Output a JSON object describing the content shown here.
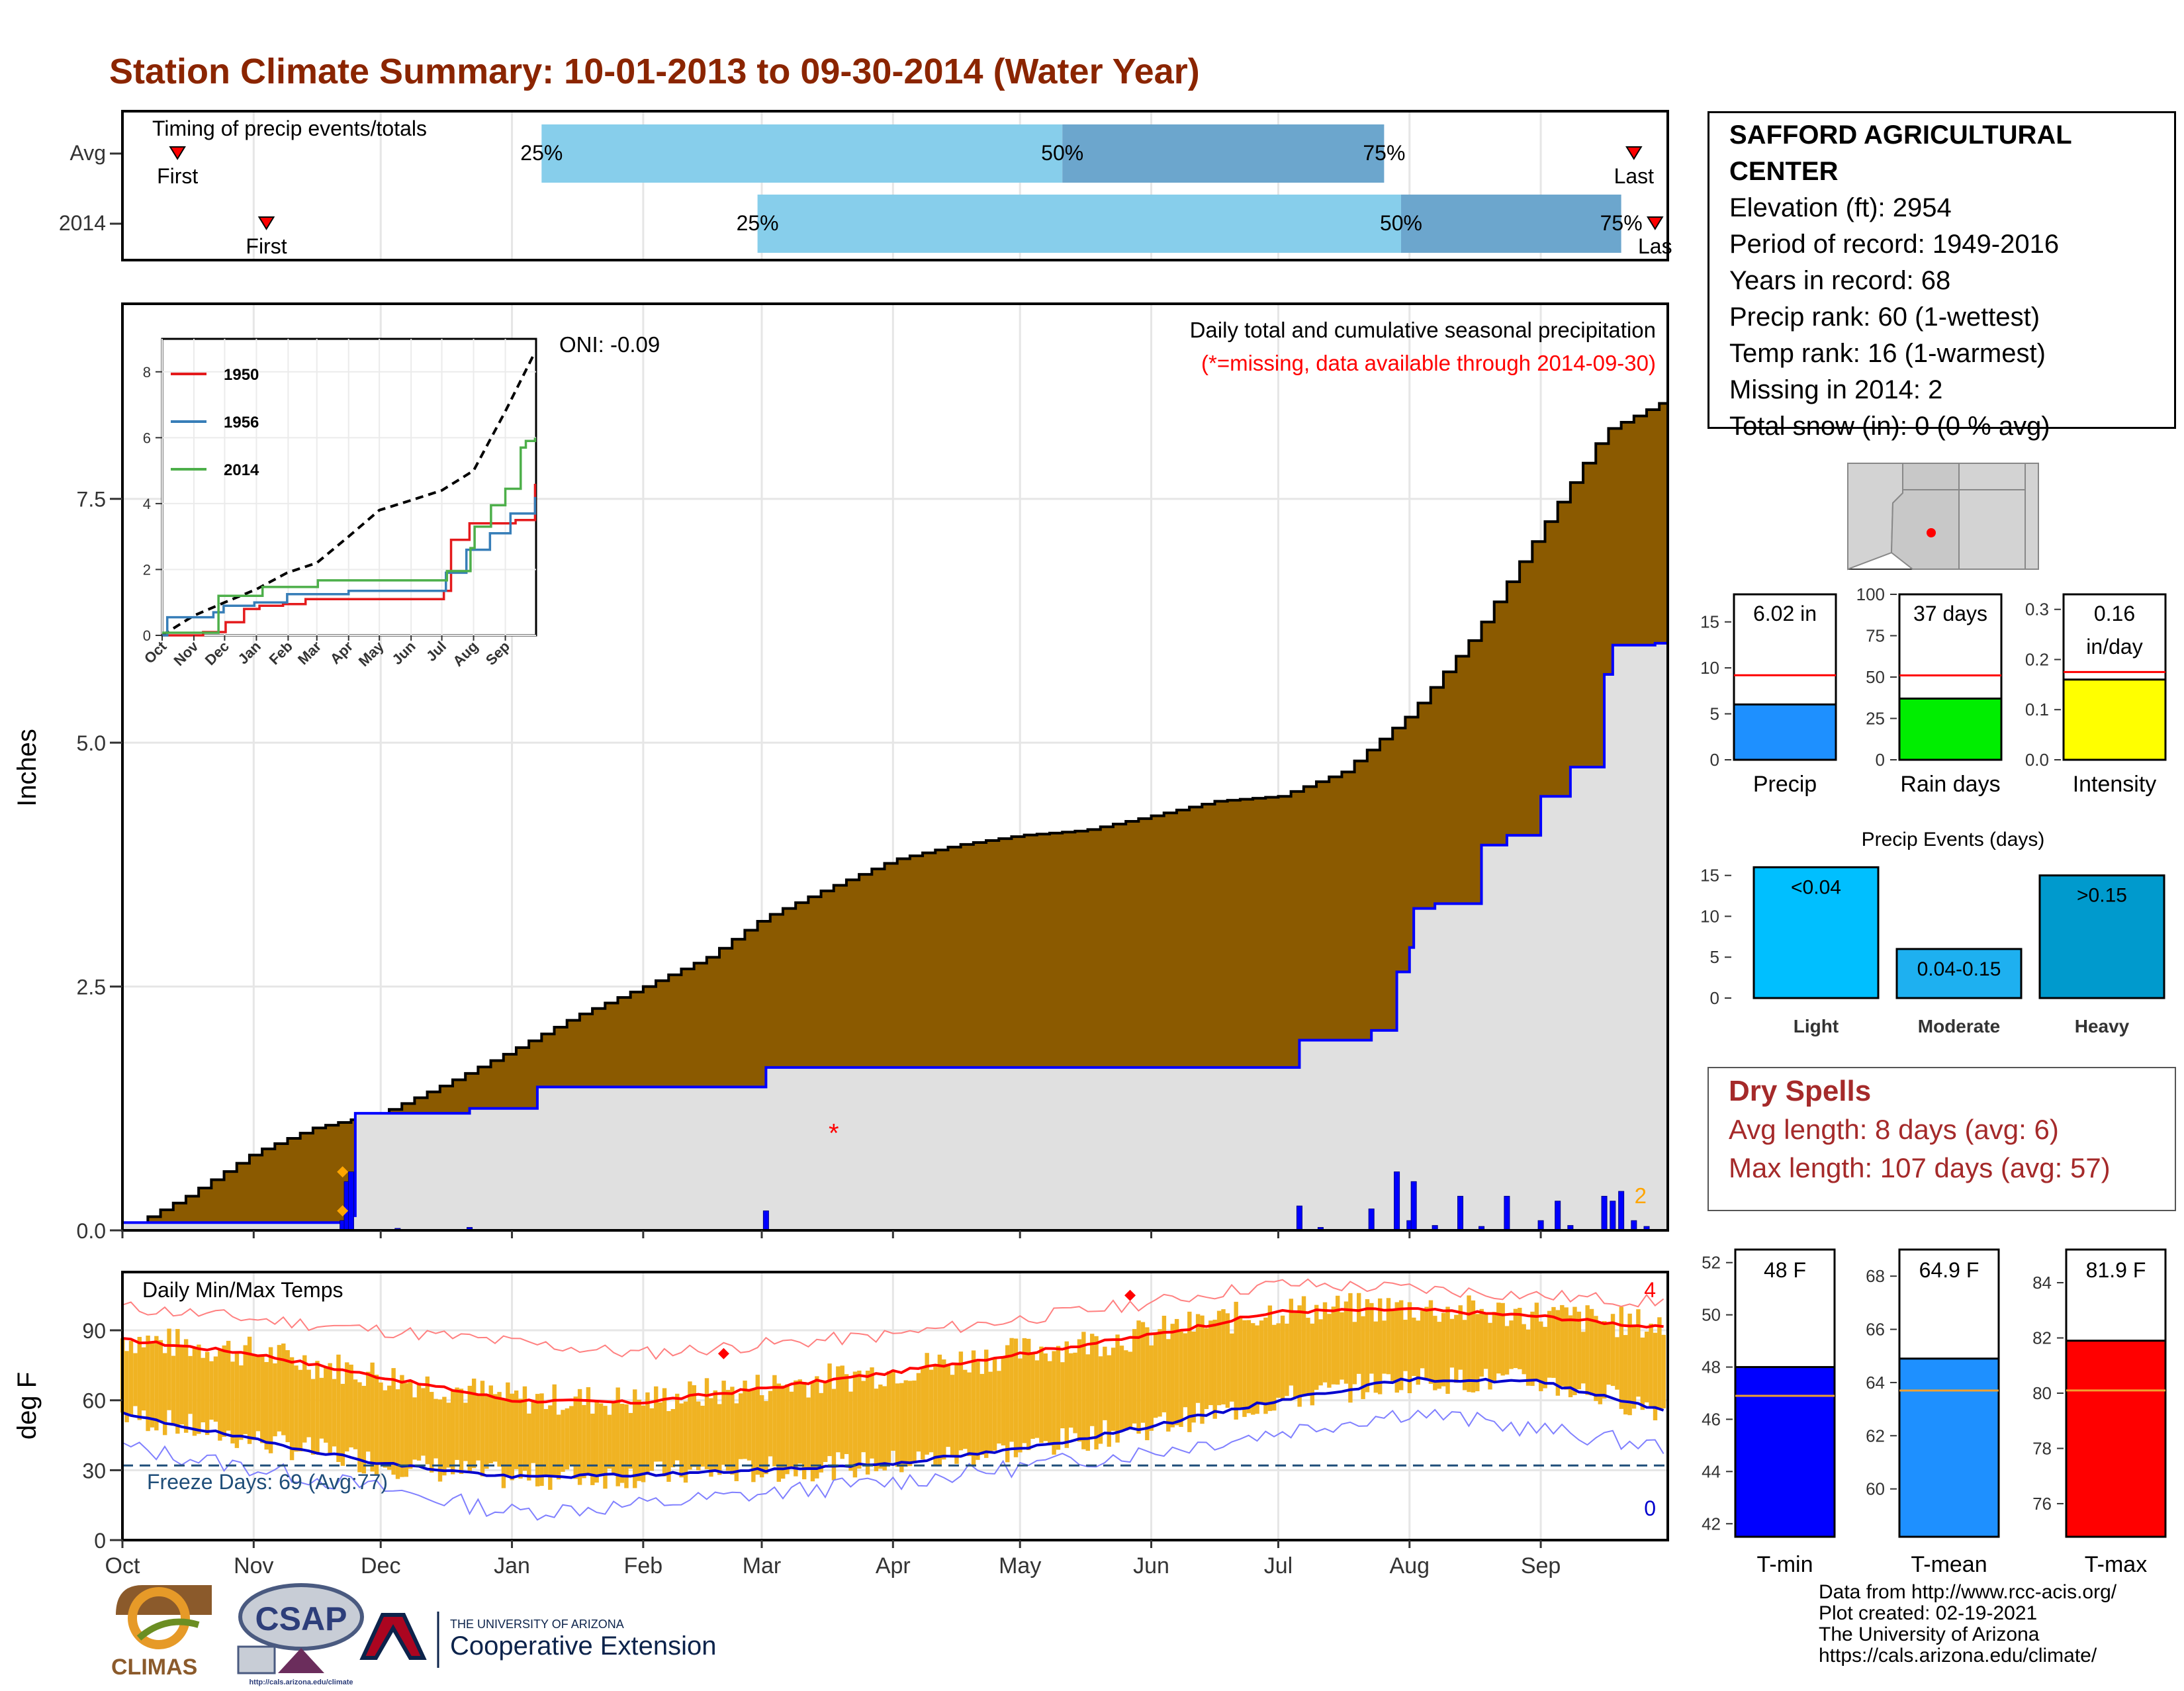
{
  "title": "Station Climate Summary: 10-01-2013 to 09-30-2014 (Water Year)",
  "colors": {
    "title": "#8B2500",
    "cumulative_avg_fill": "#8B5A00",
    "cumulative_obs_fill": "#E0E0E0",
    "obs_line": "#0000FF",
    "timing_light": "#87CEEB",
    "timing_dark": "#6CA6CD",
    "temp_bars": "#F0B323",
    "tmax_line": "#FF0000",
    "tmin_line": "#0000CD",
    "freeze_line": "#1F4E79",
    "dry_spells": "#A52A2A"
  },
  "timing": {
    "title": "Timing of precip events/totals",
    "rows": [
      {
        "label": "Avg",
        "first_label": "First",
        "last_label": "Last",
        "first": "2013-10-14",
        "p25": "2014-01-08",
        "p50": "2014-05-11",
        "p75": "2014-07-26",
        "last": "2014-09-23",
        "p25_label": "25%",
        "p50_label": "50%",
        "p75_label": "75%"
      },
      {
        "label": "2014",
        "first_label": "First",
        "last_label": "Las",
        "first": "2013-11-04",
        "p25": "2014-02-28",
        "p50": "2014-07-30",
        "p75": "2014-09-20",
        "last": "2014-09-28",
        "p25_label": "25%",
        "p50_label": "50%",
        "p75_label": "75%"
      }
    ]
  },
  "precip": {
    "ylabel": "Inches",
    "header": "Daily total and cumulative seasonal precipitation",
    "note": "(*=missing, data available through 2014-09-30)",
    "oni": "ONI: -0.09",
    "missing_count": "2",
    "y_ticks": [
      "0.0",
      "2.5",
      "5.0",
      "7.5"
    ],
    "x_ticks": [
      "Oct",
      "Nov",
      "Dec",
      "Jan",
      "Feb",
      "Mar",
      "Apr",
      "May",
      "Jun",
      "Jul",
      "Aug",
      "Sep"
    ]
  },
  "inset": {
    "y_ticks": [
      "0",
      "2",
      "4",
      "6",
      "8"
    ],
    "x_ticks": [
      "Oct",
      "Nov",
      "Dec",
      "Jan",
      "Feb",
      "Mar",
      "Apr",
      "May",
      "Jun",
      "Jul",
      "Aug",
      "Sep"
    ],
    "legend": [
      {
        "name": "1950",
        "color": "#E41A1C"
      },
      {
        "name": "1956",
        "color": "#377EB8"
      },
      {
        "name": "2014",
        "color": "#4DAF4A"
      }
    ]
  },
  "temps": {
    "ylabel": "deg F",
    "header": "Daily Min/Max Temps",
    "freeze": "Freeze Days: 69 (Avg:77)",
    "max_count": "4",
    "min_count": "0",
    "y_ticks": [
      "0",
      "30",
      "60",
      "90"
    ],
    "x_ticks": [
      "Oct",
      "Nov",
      "Dec",
      "Jan",
      "Feb",
      "Mar",
      "Apr",
      "May",
      "Jun",
      "Jul",
      "Aug",
      "Sep"
    ]
  },
  "station": {
    "name": "SAFFORD AGRICULTURAL CENTER",
    "lines": [
      "Elevation (ft): 2954",
      "Period of record: 1949-2016",
      "Years in record: 68",
      "Precip rank: 60 (1-wettest)",
      "Temp rank: 16 (1-warmest)",
      "Missing in 2014: 2",
      "Total snow (in): 0 (0 % avg)"
    ]
  },
  "summary_bars": [
    {
      "label": "Precip",
      "value_label": "6.02 in",
      "value": 6.02,
      "avg": 9.2,
      "max": 18,
      "ticks": [
        "0",
        "5",
        "10",
        "15"
      ],
      "color": "#1E90FF"
    },
    {
      "label": "Rain days",
      "value_label": "37 days",
      "value": 37,
      "avg": 51,
      "max": 100,
      "ticks": [
        "0",
        "25",
        "50",
        "75",
        "100"
      ],
      "color": "#00EE00"
    },
    {
      "label": "Intensity",
      "value_label": "0.16 in/day",
      "value": 0.16,
      "avg": 0.175,
      "max": 0.33,
      "ticks": [
        "0.0",
        "0.1",
        "0.2",
        "0.3"
      ],
      "color": "#FFFF00"
    }
  ],
  "events": {
    "title": "Precip Events (days)",
    "ticks": [
      "0",
      "5",
      "10",
      "15"
    ],
    "bars": [
      {
        "label": "Light",
        "range": "<0.04",
        "value": 16,
        "color": "#00BFFF"
      },
      {
        "label": "Moderate",
        "range": "0.04-0.15",
        "value": 6,
        "color": "#1EB0F0"
      },
      {
        "label": "Heavy",
        "range": ">0.15",
        "value": 15,
        "color": "#009ACD"
      }
    ]
  },
  "dry_spells": {
    "title": "Dry Spells",
    "avg": "Avg length: 8 days (avg: 6)",
    "max": "Max length: 107 days (avg: 57)"
  },
  "temp_bars": [
    {
      "label": "T-min",
      "value_label": "48 F",
      "value": 48,
      "avg": 46.9,
      "min": 41.5,
      "max": 52.5,
      "ticks": [
        "42",
        "44",
        "46",
        "48",
        "50",
        "52"
      ],
      "color": "#0000FF"
    },
    {
      "label": "T-mean",
      "value_label": "64.9 F",
      "value": 64.9,
      "avg": 63.7,
      "min": 58.2,
      "max": 69,
      "ticks": [
        "60",
        "62",
        "64",
        "66",
        "68"
      ],
      "color": "#1E90FF"
    },
    {
      "label": "T-max",
      "value_label": "81.9 F",
      "value": 81.9,
      "avg": 80.1,
      "min": 74.8,
      "max": 85.2,
      "ticks": [
        "76",
        "78",
        "80",
        "82",
        "84"
      ],
      "color": "#FF0000"
    }
  ],
  "credits": [
    "Data from http://www.rcc-acis.org/",
    "Plot created: 02-19-2021",
    "The University of Arizona",
    "https://cals.arizona.edu/climate/"
  ],
  "logos": {
    "climas": "CLIMAS",
    "csap": "CSAP",
    "csap_url": "http://cals.arizona.edu/climate",
    "ua_top": "THE UNIVERSITY OF ARIZONA",
    "ua_bottom": "Cooperative Extension"
  },
  "chart_data": [
    {
      "type": "area",
      "title": "Daily total and cumulative seasonal precipitation",
      "ylabel": "Inches",
      "ylim": [
        0,
        9.5
      ],
      "x_unit": "water-year day (0 = Oct 1)",
      "series": [
        {
          "name": "Average cumulative",
          "x": [
            0,
            15,
            31,
            45,
            61,
            76,
            92,
            107,
            123,
            138,
            151,
            166,
            182,
            197,
            212,
            227,
            243,
            258,
            273,
            288,
            304,
            319,
            335,
            350,
            364
          ],
          "values": [
            0,
            0.35,
            0.8,
            1.05,
            1.2,
            1.5,
            1.85,
            2.2,
            2.5,
            2.8,
            3.2,
            3.5,
            3.8,
            3.95,
            4.05,
            4.1,
            4.25,
            4.4,
            4.45,
            4.7,
            5.3,
            6.1,
            7.2,
            8.2,
            8.5
          ]
        },
        {
          "name": "2014 cumulative",
          "x": [
            0,
            33,
            54,
            55,
            82,
            98,
            152,
            275,
            278,
            295,
            301,
            304,
            305,
            310,
            321,
            327,
            335,
            342,
            350,
            352,
            362,
            364
          ],
          "values": [
            0.08,
            0.08,
            0.15,
            1.2,
            1.25,
            1.47,
            1.67,
            1.67,
            1.95,
            2.05,
            2.65,
            2.9,
            3.3,
            3.35,
            3.95,
            4.05,
            4.45,
            4.75,
            5.7,
            6.0,
            6.02,
            6.02
          ]
        }
      ],
      "daily_precip": {
        "x": [
          52,
          53,
          54,
          65,
          82,
          152,
          278,
          283,
          295,
          301,
          304,
          305,
          310,
          316,
          321,
          327,
          335,
          339,
          342,
          350,
          352,
          354,
          357,
          360
        ],
        "values": [
          0.1,
          0.5,
          0.6,
          0.02,
          0.03,
          0.2,
          0.25,
          0.03,
          0.22,
          0.6,
          0.1,
          0.5,
          0.05,
          0.35,
          0.04,
          0.35,
          0.1,
          0.3,
          0.05,
          0.35,
          0.3,
          0.4,
          0.1,
          0.04
        ]
      },
      "missing_x": [
        52,
        168
      ]
    },
    {
      "type": "line",
      "title": "",
      "ylim": [
        0,
        9
      ],
      "x_unit": "water-year day (0 = Oct 1)",
      "series": [
        {
          "name": "Average",
          "x": [
            0,
            31,
            61,
            92,
            122,
            151,
            182,
            212,
            243,
            263,
            273,
            304,
            335,
            364
          ],
          "values": [
            0,
            0.6,
            1.0,
            1.4,
            1.9,
            2.2,
            3.0,
            3.8,
            4.1,
            4.3,
            4.4,
            5.0,
            6.8,
            8.6
          ]
        },
        {
          "name": "1950",
          "x": [
            0,
            40,
            62,
            80,
            95,
            118,
            140,
            175,
            260,
            275,
            282,
            300,
            320,
            345,
            364
          ],
          "values": [
            0,
            0.1,
            0.4,
            0.8,
            0.9,
            0.95,
            1.1,
            1.1,
            1.1,
            1.35,
            2.9,
            3.4,
            3.4,
            3.5,
            4.6
          ]
        },
        {
          "name": "1956",
          "x": [
            0,
            5,
            33,
            50,
            60,
            90,
            122,
            182,
            260,
            277,
            297,
            320,
            340,
            364
          ],
          "values": [
            0,
            0.55,
            0.55,
            0.7,
            0.9,
            1.0,
            1.25,
            1.35,
            1.35,
            1.9,
            2.6,
            3.1,
            3.7,
            4.2
          ]
        },
        {
          "name": "2014",
          "x": [
            0,
            33,
            55,
            98,
            152,
            278,
            301,
            305,
            321,
            335,
            350,
            355,
            364
          ],
          "values": [
            0.08,
            0.08,
            1.2,
            1.47,
            1.67,
            1.95,
            2.65,
            3.3,
            3.95,
            4.45,
            5.7,
            5.9,
            6.0
          ]
        }
      ]
    },
    {
      "type": "line",
      "title": "Daily Min/Max Temps",
      "ylabel": "deg F",
      "ylim": [
        0,
        115
      ],
      "x_unit": "water-year day (0 = Oct 1)",
      "series": [
        {
          "name": "Normal max",
          "x": [
            0,
            31,
            61,
            92,
            122,
            151,
            182,
            212,
            243,
            273,
            304,
            335,
            364
          ],
          "values": [
            86,
            80,
            70,
            60,
            59,
            65,
            72,
            80,
            88,
            98,
            99,
            96,
            91
          ]
        },
        {
          "name": "Normal min",
          "x": [
            0,
            31,
            61,
            92,
            122,
            151,
            182,
            212,
            243,
            273,
            304,
            335,
            364
          ],
          "values": [
            54,
            43,
            33,
            27,
            28,
            30,
            33,
            39,
            49,
            60,
            69,
            68,
            56
          ]
        },
        {
          "name": "Record high",
          "x": [
            0,
            61,
            122,
            182,
            243,
            273,
            304,
            364
          ],
          "values": [
            100,
            90,
            80,
            88,
            102,
            110,
            108,
            102
          ]
        },
        {
          "name": "Record low",
          "x": [
            0,
            61,
            92,
            122,
            182,
            243,
            304,
            364
          ],
          "values": [
            40,
            22,
            12,
            15,
            25,
            38,
            55,
            40
          ]
        }
      ],
      "freeze_threshold": 32
    }
  ]
}
